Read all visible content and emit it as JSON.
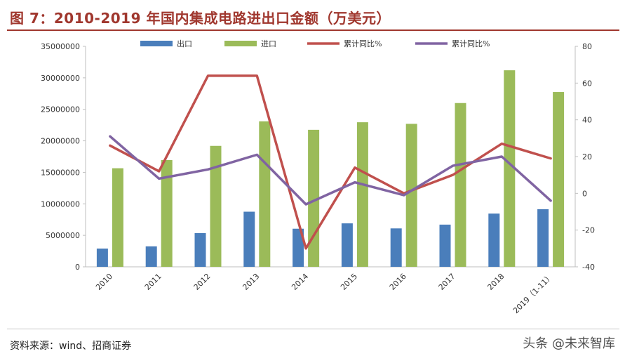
{
  "header": {
    "title": "图 7：2010-2019 年国内集成电路进出口金额（万美元）"
  },
  "footer": {
    "source": "资料来源：wind、招商证券",
    "watermark": "头条 @未来智库"
  },
  "chart_data": {
    "type": "bar",
    "categories": [
      "2010",
      "2011",
      "2012",
      "2013",
      "2014",
      "2015",
      "2016",
      "2017",
      "2018",
      "2019（1-11）"
    ],
    "left_axis": {
      "ylim": [
        0,
        35000000
      ],
      "ticks": [
        0,
        5000000,
        10000000,
        15000000,
        20000000,
        25000000,
        30000000,
        35000000
      ]
    },
    "right_axis": {
      "ylim": [
        -40,
        80
      ],
      "ticks": [
        -40,
        -20,
        0,
        20,
        40,
        60,
        80
      ]
    },
    "series": [
      {
        "name": "出口",
        "kind": "bar",
        "axis": "left",
        "color": "#4a7ebb",
        "values": [
          2900000,
          3250000,
          5350000,
          8750000,
          6050000,
          6900000,
          6100000,
          6700000,
          8450000,
          9150000
        ]
      },
      {
        "name": "进口",
        "kind": "bar",
        "axis": "left",
        "color": "#9bbb59",
        "values": [
          15650000,
          16950000,
          19200000,
          23100000,
          21750000,
          22950000,
          22700000,
          26000000,
          31200000,
          27750000
        ]
      },
      {
        "name": "累计同比%",
        "kind": "line",
        "axis": "right",
        "color": "#c0504d",
        "values": [
          26,
          12,
          64,
          64,
          -30,
          14,
          0,
          10,
          27,
          19
        ]
      },
      {
        "name": "累计同比%",
        "kind": "line",
        "axis": "right",
        "color": "#8064a2",
        "values": [
          31,
          8,
          13,
          21,
          -6,
          6,
          -1,
          15,
          20,
          -4
        ]
      }
    ],
    "legend_position": "top",
    "grid": false
  }
}
